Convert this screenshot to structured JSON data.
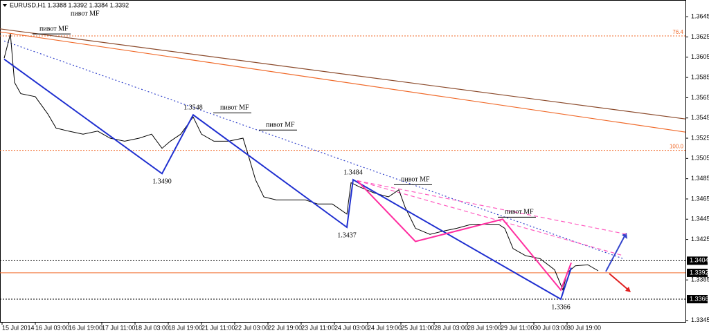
{
  "chart_data": {
    "type": "line",
    "title": "EURUSD,H1 1.3388 1.3392 1.3384 1.3392",
    "color": "#000000",
    "x": [
      1,
      4,
      6,
      9,
      16,
      22,
      26,
      32,
      39,
      46,
      52,
      59,
      66,
      72,
      77,
      81,
      86,
      92,
      96,
      102,
      109,
      116,
      119,
      122,
      126,
      132,
      139,
      146,
      152,
      159,
      166,
      168,
      172,
      179,
      186,
      191,
      194,
      199,
      206,
      212,
      219,
      226,
      232,
      239,
      242,
      246,
      252,
      259,
      266,
      270,
      272,
      276,
      282,
      287
    ],
    "values": [
      1.3604,
      1.3628,
      1.358,
      1.3569,
      1.3566,
      1.3549,
      1.3535,
      1.3532,
      1.3529,
      1.3532,
      1.3525,
      1.3522,
      1.3525,
      1.3529,
      1.3515,
      1.3522,
      1.3529,
      1.3546,
      1.3529,
      1.3522,
      1.3522,
      1.3525,
      1.3505,
      1.3484,
      1.3467,
      1.3464,
      1.3464,
      1.3464,
      1.346,
      1.346,
      1.345,
      1.3481,
      1.3477,
      1.3471,
      1.3467,
      1.3474,
      1.3457,
      1.3436,
      1.343,
      1.3433,
      1.3436,
      1.344,
      1.344,
      1.344,
      1.3436,
      1.3416,
      1.3409,
      1.3406,
      1.3395,
      1.3375,
      1.3392,
      1.3399,
      1.34,
      1.3394
    ],
    "xlim": [
      -1,
      329
    ],
    "ylim": [
      1.33435,
      1.36615
    ],
    "xticks": [
      {
        "value": 0,
        "label": "15 Jul 2014"
      },
      {
        "value": 16,
        "label": "16 Jul 03:00"
      },
      {
        "value": 32,
        "label": "16 Jul 19:00"
      },
      {
        "value": 48,
        "label": "17 Jul 11:00"
      },
      {
        "value": 64,
        "label": "18 Jul 03:00"
      },
      {
        "value": 80,
        "label": "18 Jul 19:00"
      },
      {
        "value": 96,
        "label": "21 Jul 11:00"
      },
      {
        "value": 112,
        "label": "22 Jul 03:00"
      },
      {
        "value": 128,
        "label": "22 Jul 19:00"
      },
      {
        "value": 144,
        "label": "23 Jul 11:00"
      },
      {
        "value": 160,
        "label": "24 Jul 03:00"
      },
      {
        "value": 176,
        "label": "24 Jul 19:00"
      },
      {
        "value": 192,
        "label": "25 Jul 11:00"
      },
      {
        "value": 208,
        "label": "28 Jul 03:00"
      },
      {
        "value": 224,
        "label": "28 Jul 19:00"
      },
      {
        "value": 240,
        "label": "29 Jul 11:00"
      },
      {
        "value": 256,
        "label": "30 Jul 03:00"
      },
      {
        "value": 272,
        "label": "30 Jul 19:00"
      }
    ],
    "yticks": [
      1.3645,
      1.3625,
      1.3605,
      1.3585,
      1.3565,
      1.3545,
      1.3525,
      1.3505,
      1.3485,
      1.3465,
      1.3445,
      1.3425,
      1.3385,
      1.3345
    ],
    "zigzags": [
      {
        "color": "#1f2fd0",
        "x": [
          1,
          77,
          92,
          166,
          169,
          269,
          274
        ],
        "values": [
          1.3603,
          1.349,
          1.3548,
          1.3437,
          1.3484,
          1.3366,
          1.3397
        ],
        "value_labels": [
          null,
          "1.3490",
          "1.3548",
          "1.3437",
          "1.3484",
          "1.3366",
          null
        ]
      },
      {
        "color": "#ff2da0",
        "x": [
          171,
          199,
          241,
          269,
          274
        ],
        "values": [
          1.3483,
          1.3423,
          1.3445,
          1.3375,
          1.3402
        ]
      }
    ],
    "trendlines": [
      {
        "color": "#8b4a2b",
        "x": [
          -1,
          329
        ],
        "values": [
          1.3633,
          1.3544
        ]
      },
      {
        "color": "#f06a2a",
        "x": [
          -1,
          329
        ],
        "values": [
          1.363,
          1.3531
        ]
      },
      {
        "color": "#3344cc",
        "dash": "2,3",
        "x": [
          1,
          299
        ],
        "values": [
          1.3621,
          1.3406
        ]
      },
      {
        "color": "#ff5bc0",
        "dash": "6,4",
        "x": [
          171,
          299
        ],
        "values": [
          1.3483,
          1.3409
        ]
      },
      {
        "color": "#ff5bc0",
        "dash": "6,4",
        "x": [
          171,
          301
        ],
        "values": [
          1.3483,
          1.343
        ]
      }
    ],
    "levels": [
      {
        "value": 1.3626,
        "label": "76.4",
        "color": "#f06a2a"
      },
      {
        "value": 1.3513,
        "label": "100.0",
        "color": "#f06a2a"
      },
      {
        "value": 1.3404,
        "color": "#000000"
      },
      {
        "value": 1.3392,
        "color": "#f06a2a"
      },
      {
        "value": 1.3366,
        "color": "#000000"
      }
    ],
    "pivots": [
      {
        "label": "пивот MF",
        "x": 33,
        "y": 1.3643
      },
      {
        "label": "пивот MF",
        "x": 18,
        "y": 1.3628
      },
      {
        "label": "пивот MF",
        "x": 105,
        "y": 1.355
      },
      {
        "label": "пивот MF",
        "x": 127,
        "y": 1.3533
      },
      {
        "label": "пивот MF",
        "x": 192,
        "y": 1.3479
      },
      {
        "label": "пивот MF",
        "x": 242,
        "y": 1.3447
      }
    ]
  }
}
